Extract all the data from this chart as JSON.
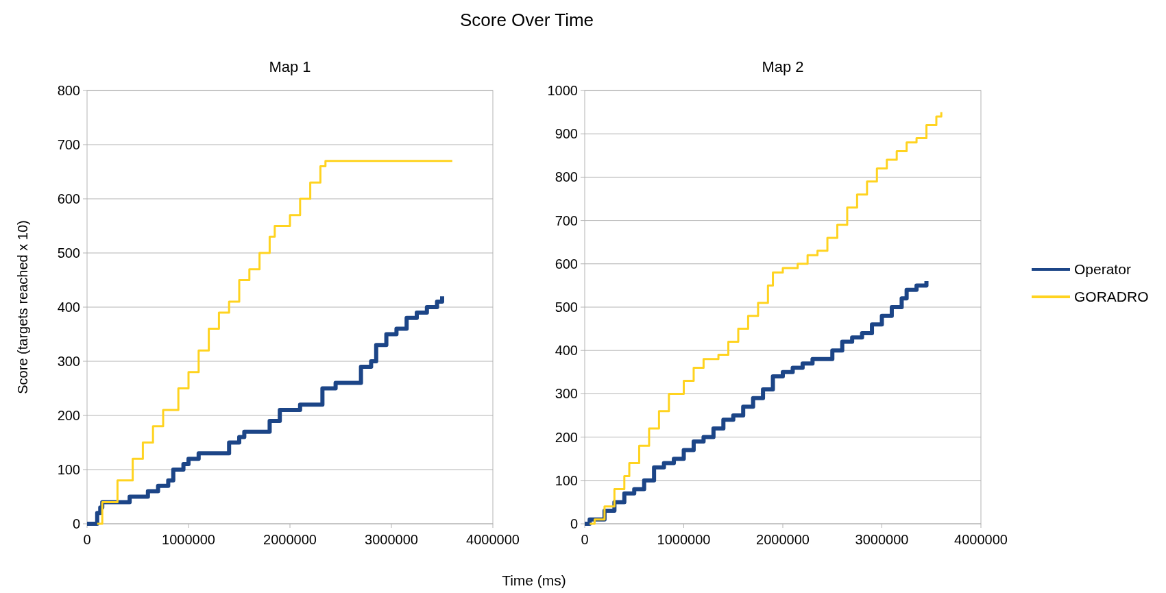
{
  "chart_data": [
    {
      "type": "step",
      "title": "Score Over Time",
      "subtitle": "Map 1",
      "xlabel": "Time (ms)",
      "ylabel": "Score (targets reached x 10)",
      "xlim": [
        0,
        4000000
      ],
      "xticks": [
        0,
        1000000,
        2000000,
        3000000,
        4000000
      ],
      "ylim": [
        0,
        800
      ],
      "yticks": [
        0,
        100,
        200,
        300,
        400,
        500,
        600,
        700,
        800
      ],
      "grid": "y",
      "legend": false,
      "line_style": "solid",
      "series": [
        {
          "color": "#1c4587",
          "x": [
            0,
            50000,
            100000,
            130000,
            150000,
            400000,
            420000,
            550000,
            600000,
            700000,
            800000,
            850000,
            950000,
            1000000,
            1100000,
            1350000,
            1400000,
            1500000,
            1550000,
            1750000,
            1800000,
            1900000,
            2050000,
            2100000,
            2300000,
            2320000,
            2400000,
            2450000,
            2600000,
            2700000,
            2800000,
            2850000,
            2950000,
            3050000,
            3150000,
            3250000,
            3350000,
            3450000,
            3500000
          ],
          "values": [
            0,
            0,
            20,
            30,
            40,
            40,
            50,
            50,
            60,
            70,
            80,
            100,
            110,
            120,
            130,
            130,
            150,
            160,
            170,
            170,
            190,
            210,
            210,
            220,
            220,
            250,
            250,
            260,
            260,
            290,
            300,
            330,
            350,
            360,
            380,
            390,
            400,
            410,
            420
          ]
        },
        {
          "color": "#ffd320",
          "x": [
            100000,
            150000,
            300000,
            450000,
            550000,
            650000,
            750000,
            850000,
            900000,
            1000000,
            1100000,
            1200000,
            1300000,
            1400000,
            1500000,
            1600000,
            1700000,
            1800000,
            1850000,
            1950000,
            2000000,
            2100000,
            2200000,
            2300000,
            2350000,
            3600000
          ],
          "values": [
            0,
            40,
            80,
            120,
            150,
            180,
            210,
            210,
            250,
            280,
            320,
            360,
            390,
            410,
            450,
            470,
            500,
            530,
            550,
            550,
            570,
            600,
            630,
            660,
            670,
            670
          ]
        }
      ]
    },
    {
      "type": "step",
      "subtitle": "Map 2",
      "xlim": [
        0,
        4000000
      ],
      "xticks": [
        0,
        1000000,
        2000000,
        3000000,
        4000000
      ],
      "ylim": [
        0,
        1000
      ],
      "yticks": [
        0,
        100,
        200,
        300,
        400,
        500,
        600,
        700,
        800,
        900,
        1000
      ],
      "grid": "y",
      "legend": "right",
      "line_style": "solid",
      "series": [
        {
          "name": "Operator",
          "color": "#1c4587",
          "x": [
            0,
            50000,
            150000,
            200000,
            300000,
            400000,
            500000,
            600000,
            700000,
            800000,
            900000,
            1000000,
            1100000,
            1200000,
            1300000,
            1400000,
            1500000,
            1600000,
            1700000,
            1800000,
            1900000,
            2000000,
            2100000,
            2200000,
            2300000,
            2450000,
            2500000,
            2600000,
            2700000,
            2800000,
            2900000,
            3000000,
            3100000,
            3200000,
            3250000,
            3350000,
            3450000
          ],
          "values": [
            0,
            10,
            10,
            30,
            50,
            70,
            80,
            100,
            130,
            140,
            150,
            170,
            190,
            200,
            220,
            240,
            250,
            270,
            290,
            310,
            340,
            350,
            360,
            370,
            380,
            380,
            400,
            420,
            430,
            440,
            460,
            480,
            500,
            520,
            540,
            550,
            560
          ]
        },
        {
          "name": "GORADRO",
          "color": "#ffd320",
          "x": [
            50000,
            100000,
            200000,
            300000,
            400000,
            450000,
            550000,
            650000,
            750000,
            850000,
            1000000,
            1100000,
            1200000,
            1350000,
            1450000,
            1550000,
            1650000,
            1750000,
            1850000,
            1900000,
            2000000,
            2150000,
            2250000,
            2350000,
            2450000,
            2550000,
            2650000,
            2750000,
            2850000,
            2950000,
            3050000,
            3150000,
            3250000,
            3350000,
            3450000,
            3550000,
            3600000
          ],
          "values": [
            0,
            10,
            40,
            80,
            110,
            140,
            180,
            220,
            260,
            300,
            330,
            360,
            380,
            390,
            420,
            450,
            480,
            510,
            550,
            580,
            590,
            600,
            620,
            630,
            660,
            690,
            730,
            760,
            790,
            820,
            840,
            860,
            880,
            890,
            920,
            940,
            950
          ]
        }
      ]
    }
  ]
}
